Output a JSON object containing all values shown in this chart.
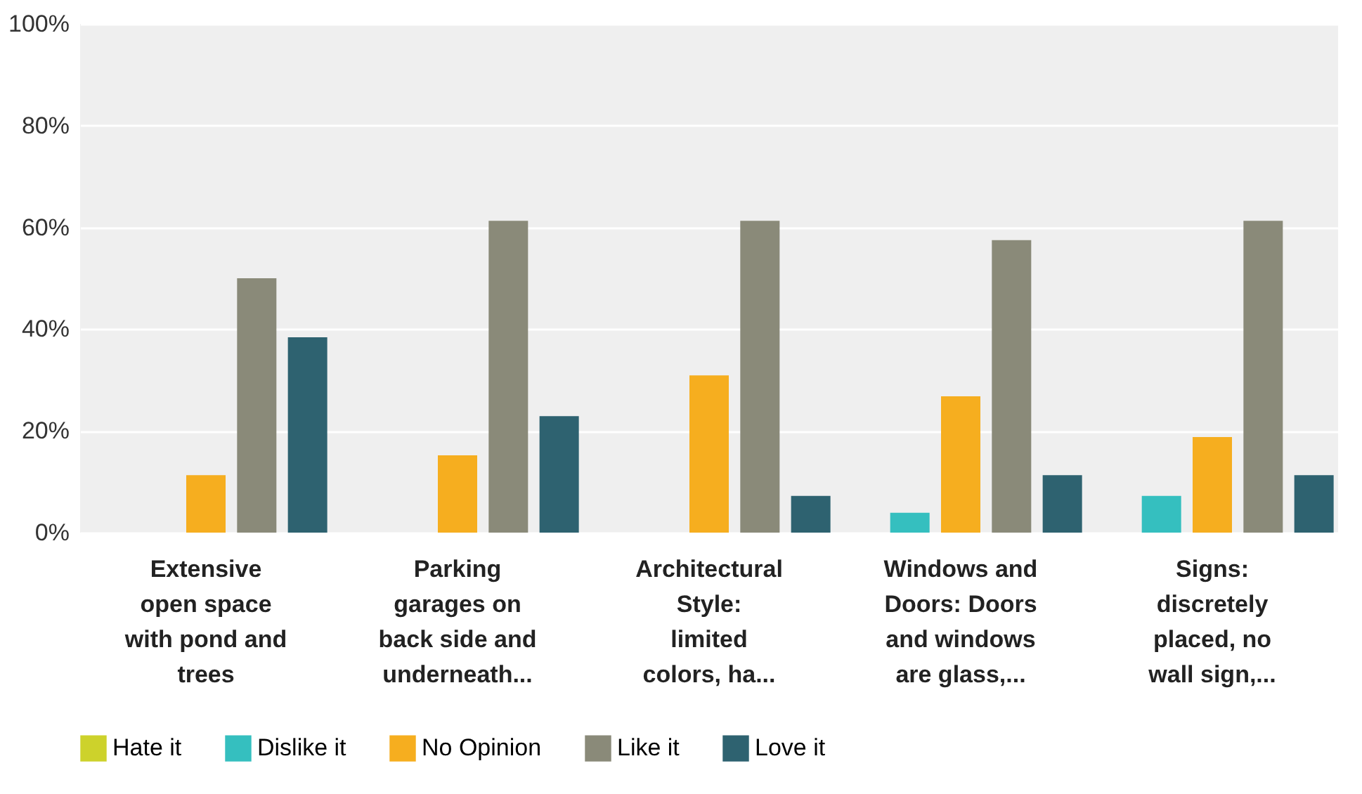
{
  "chart_data": {
    "type": "bar",
    "categories": [
      "Extensive open space with pond and trees",
      "Parking garages on back side and underneath...",
      "Architectural Style: limited colors, ha...",
      "Windows and Doors: Doors and windows are glass,...",
      "Signs: discretely placed, no wall sign,..."
    ],
    "series": [
      {
        "name": "Hate it",
        "color": "#cdd22b",
        "values": [
          0,
          0,
          0,
          0,
          0
        ]
      },
      {
        "name": "Dislike it",
        "color": "#35bfbf",
        "values": [
          0,
          0,
          0,
          3.9,
          7.2
        ]
      },
      {
        "name": "No Opinion",
        "color": "#f6ae1f",
        "values": [
          11.3,
          15.2,
          30.9,
          26.8,
          18.8
        ]
      },
      {
        "name": "Like it",
        "color": "#8a8a79",
        "values": [
          50,
          61.3,
          61.3,
          57.5,
          61.3
        ]
      },
      {
        "name": "Love it",
        "color": "#2e6270",
        "values": [
          38.4,
          22.9,
          7.2,
          11.3,
          11.3
        ]
      }
    ],
    "ylim": [
      0,
      100
    ],
    "yticks": [
      {
        "value": 0,
        "label": "0%"
      },
      {
        "value": 20,
        "label": "20%"
      },
      {
        "value": 40,
        "label": "40%"
      },
      {
        "value": 60,
        "label": "60%"
      },
      {
        "value": 80,
        "label": "80%"
      },
      {
        "value": 100,
        "label": "100%"
      }
    ],
    "grid": "y",
    "legend": "bottom"
  }
}
